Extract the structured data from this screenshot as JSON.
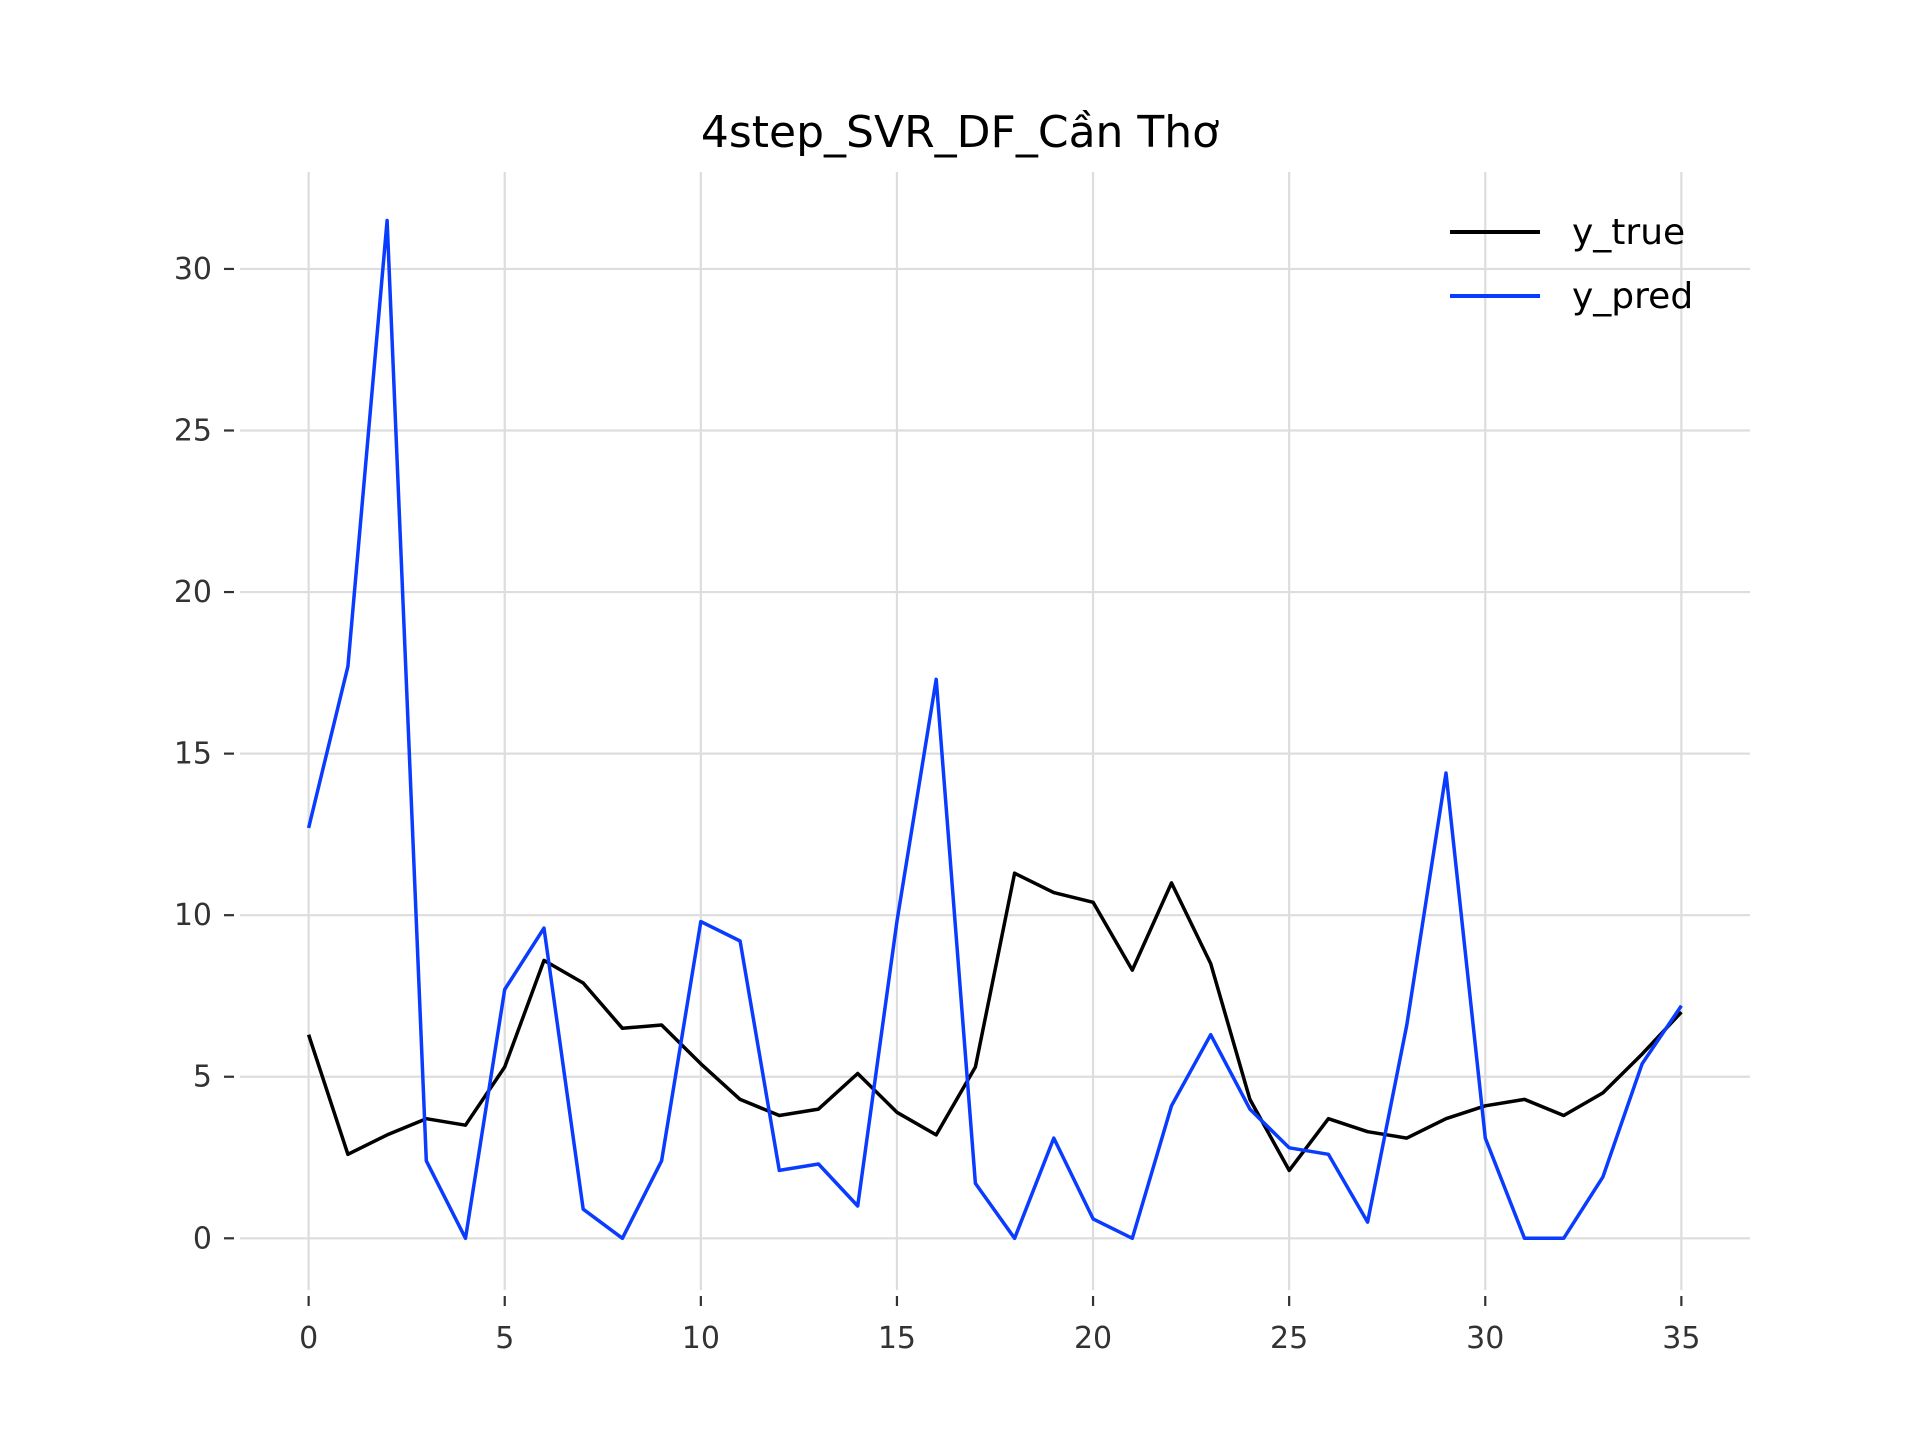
{
  "chart_data": {
    "type": "line",
    "title": "4step_SVR_DF_Cần Thơ",
    "xlabel": "",
    "ylabel": "",
    "xlim": [
      -1.75,
      36.75
    ],
    "ylim": [
      -1.6,
      33.0
    ],
    "xticks": [
      0,
      5,
      10,
      15,
      20,
      25,
      30,
      35
    ],
    "yticks": [
      0,
      5,
      10,
      15,
      20,
      25,
      30
    ],
    "grid": true,
    "legend_position": "top-right",
    "x": [
      0,
      1,
      2,
      3,
      4,
      5,
      6,
      7,
      8,
      9,
      10,
      11,
      12,
      13,
      14,
      15,
      16,
      17,
      18,
      19,
      20,
      21,
      22,
      23,
      24,
      25,
      26,
      27,
      28,
      29,
      30,
      31,
      32,
      33,
      34,
      35
    ],
    "series": [
      {
        "name": "y_true",
        "color": "#000000",
        "values": [
          6.3,
          2.6,
          3.2,
          3.7,
          3.5,
          5.3,
          8.6,
          7.9,
          6.5,
          6.6,
          5.4,
          4.3,
          3.8,
          4.0,
          5.1,
          3.9,
          3.2,
          5.3,
          11.3,
          10.7,
          10.4,
          8.3,
          11.0,
          8.5,
          4.3,
          2.1,
          3.7,
          3.3,
          3.1,
          3.7,
          4.1,
          4.3,
          3.8,
          4.5,
          5.7,
          7.0
        ]
      },
      {
        "name": "y_pred",
        "color": "#0a3cff",
        "values": [
          12.7,
          17.7,
          31.5,
          2.4,
          0.0,
          7.7,
          9.6,
          0.9,
          0.0,
          2.4,
          9.8,
          9.2,
          2.1,
          2.3,
          1.0,
          9.8,
          17.3,
          1.7,
          0.0,
          3.1,
          0.6,
          0.0,
          4.1,
          6.3,
          4.0,
          2.8,
          2.6,
          0.5,
          6.6,
          14.4,
          3.1,
          0.0,
          0.0,
          1.9,
          5.4,
          7.2
        ]
      }
    ]
  }
}
